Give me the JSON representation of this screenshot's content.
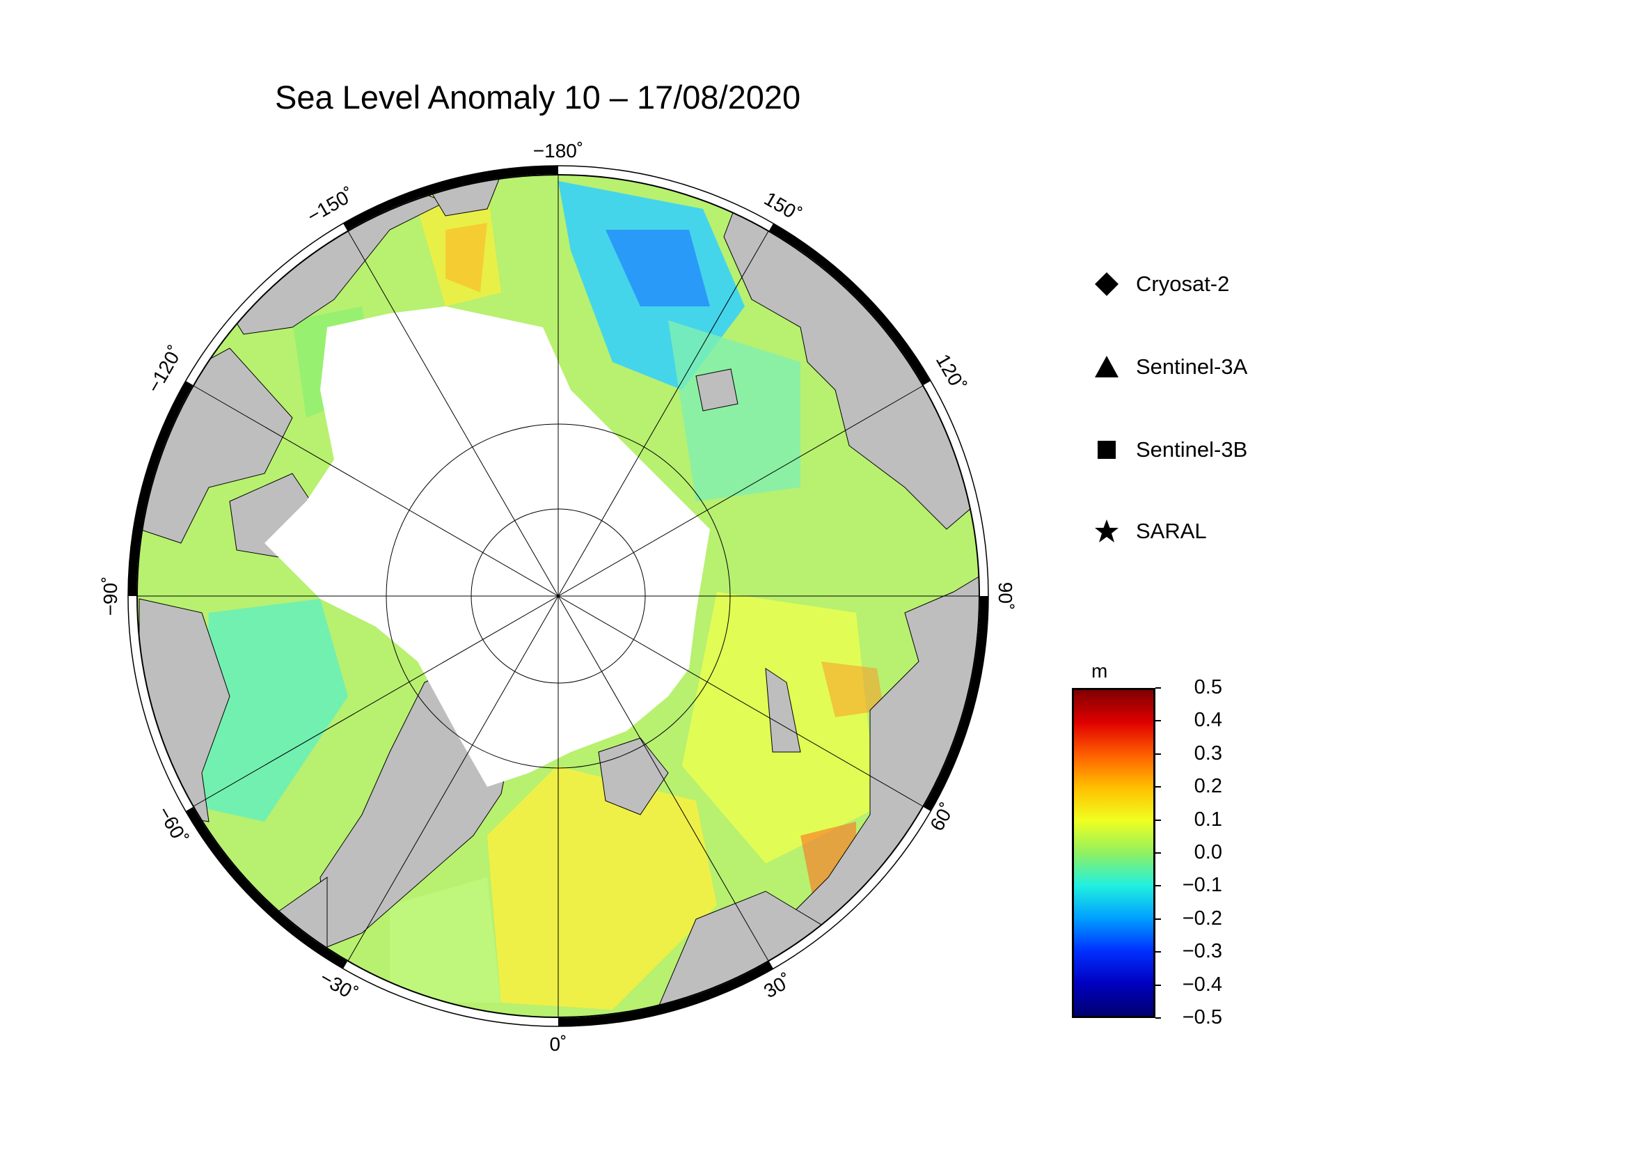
{
  "title": "Sea Level Anomaly 10 – 17/08/2020",
  "longitude_labels": [
    {
      "value": -180,
      "text": "−180˚"
    },
    {
      "value": 150,
      "text": "150˚"
    },
    {
      "value": 120,
      "text": "120˚"
    },
    {
      "value": 90,
      "text": "90˚"
    },
    {
      "value": 60,
      "text": "60˚"
    },
    {
      "value": 30,
      "text": "30˚"
    },
    {
      "value": 0,
      "text": "0˚"
    },
    {
      "value": -30,
      "text": "−30˚"
    },
    {
      "value": -60,
      "text": "−60˚"
    },
    {
      "value": -90,
      "text": "−90˚"
    },
    {
      "value": -120,
      "text": "−120˚"
    },
    {
      "value": -150,
      "text": "−150˚"
    }
  ],
  "legend": [
    {
      "label": "Cryosat-2",
      "symbol": "diamond"
    },
    {
      "label": "Sentinel-3A",
      "symbol": "triangle"
    },
    {
      "label": "Sentinel-3B",
      "symbol": "square"
    },
    {
      "label": "SARAL",
      "symbol": "star"
    }
  ],
  "colorbar": {
    "unit": "m",
    "ticks": [
      "0.5",
      "0.4",
      "0.3",
      "0.2",
      "0.1",
      "0.0",
      "−0.1",
      "−0.2",
      "−0.3",
      "−0.4",
      "−0.5"
    ],
    "colors": [
      "#800000",
      "#e00000",
      "#ff6000",
      "#ffc000",
      "#f0ff20",
      "#90f060",
      "#20f0e0",
      "#00a0ff",
      "#0030ff",
      "#0000c0",
      "#000070"
    ]
  },
  "colors": {
    "land": "#bebebe",
    "ice": "#ffffff",
    "grid": "#000000"
  }
}
